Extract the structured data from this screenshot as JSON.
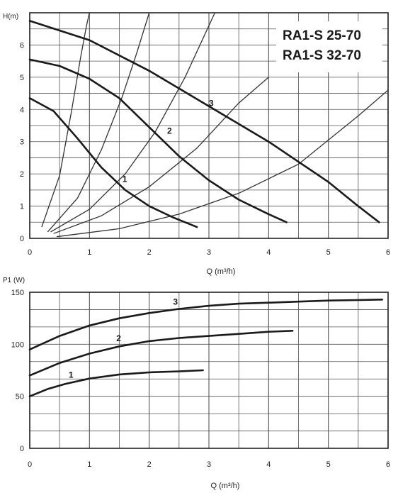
{
  "chart_data": [
    {
      "type": "line",
      "models": [
        "RA1-S 25-70",
        "RA1-S 32-70"
      ],
      "ylabel": "H(m)",
      "xlabel": "Q (m³/h)",
      "xlim": [
        0,
        6
      ],
      "ylim": [
        0,
        7
      ],
      "xticks": [
        "0",
        "1",
        "2",
        "3",
        "4",
        "5",
        "6"
      ],
      "yticks": [
        "0",
        "1",
        "2",
        "3",
        "4",
        "5",
        "6"
      ],
      "grid": true,
      "series": [
        {
          "name": "1",
          "x": [
            0.0,
            0.4,
            0.8,
            1.2,
            1.6,
            2.0,
            2.4,
            2.8
          ],
          "y": [
            4.35,
            3.95,
            3.1,
            2.2,
            1.5,
            1.0,
            0.65,
            0.35
          ],
          "label_at": [
            1.55,
            1.75
          ]
        },
        {
          "name": "2",
          "x": [
            0.0,
            0.5,
            1.0,
            1.5,
            2.0,
            2.5,
            3.0,
            3.5,
            4.0,
            4.3
          ],
          "y": [
            5.55,
            5.35,
            4.95,
            4.35,
            3.45,
            2.55,
            1.8,
            1.2,
            0.75,
            0.5
          ],
          "label_at": [
            2.3,
            3.25
          ]
        },
        {
          "name": "3",
          "x": [
            0.0,
            1.0,
            2.0,
            3.0,
            4.0,
            5.0,
            5.5,
            5.85
          ],
          "y": [
            6.75,
            6.15,
            5.2,
            4.1,
            3.0,
            1.75,
            1.0,
            0.5
          ],
          "label_at": [
            3.0,
            4.1
          ]
        }
      ],
      "system_curves": [
        {
          "x": [
            0.2,
            0.5,
            0.7,
            0.85,
            0.95,
            1.0
          ],
          "y": [
            0.35,
            1.95,
            3.95,
            5.6,
            6.6,
            7.0
          ]
        },
        {
          "x": [
            0.3,
            0.8,
            1.2,
            1.55,
            1.8,
            2.0
          ],
          "y": [
            0.2,
            1.25,
            2.75,
            4.4,
            5.8,
            7.0
          ]
        },
        {
          "x": [
            0.35,
            1.0,
            1.6,
            2.1,
            2.6,
            3.1
          ],
          "y": [
            0.2,
            0.9,
            2.0,
            3.3,
            5.0,
            7.0
          ]
        },
        {
          "x": [
            0.4,
            1.2,
            2.0,
            2.8,
            3.5,
            4.0
          ],
          "y": [
            0.15,
            0.7,
            1.6,
            2.8,
            4.2,
            5.0
          ]
        },
        {
          "x": [
            0.45,
            1.5,
            2.5,
            3.5,
            4.5,
            5.5,
            6.0
          ],
          "y": [
            0.05,
            0.3,
            0.75,
            1.4,
            2.3,
            3.8,
            4.6
          ]
        }
      ]
    },
    {
      "type": "line",
      "ylabel": "P1 (W)",
      "xlabel": "Q (m³/h)",
      "xlim": [
        0,
        6
      ],
      "ylim": [
        0,
        150
      ],
      "xticks": [
        "0",
        "1",
        "2",
        "3",
        "4",
        "5",
        "6"
      ],
      "yticks": [
        "0",
        "50",
        "100",
        "150"
      ],
      "grid": true,
      "series": [
        {
          "name": "1",
          "x": [
            0.0,
            0.3,
            0.6,
            1.0,
            1.5,
            2.0,
            2.5,
            2.9
          ],
          "y": [
            50,
            57,
            62,
            67,
            71,
            73,
            74,
            75
          ],
          "label_at": [
            0.65,
            68
          ]
        },
        {
          "name": "2",
          "x": [
            0.0,
            0.5,
            1.0,
            1.5,
            2.0,
            2.5,
            3.0,
            3.5,
            4.0,
            4.4
          ],
          "y": [
            70,
            82,
            91,
            98,
            103,
            106,
            108,
            110,
            112,
            113
          ],
          "label_at": [
            1.45,
            103
          ]
        },
        {
          "name": "3",
          "x": [
            0.0,
            0.5,
            1.0,
            1.5,
            2.0,
            2.5,
            3.0,
            3.5,
            4.0,
            4.5,
            5.0,
            5.5,
            5.9
          ],
          "y": [
            95,
            108,
            118,
            125,
            130,
            134,
            137,
            139,
            140,
            141,
            142,
            142.5,
            143
          ],
          "label_at": [
            2.4,
            138
          ]
        }
      ]
    }
  ]
}
